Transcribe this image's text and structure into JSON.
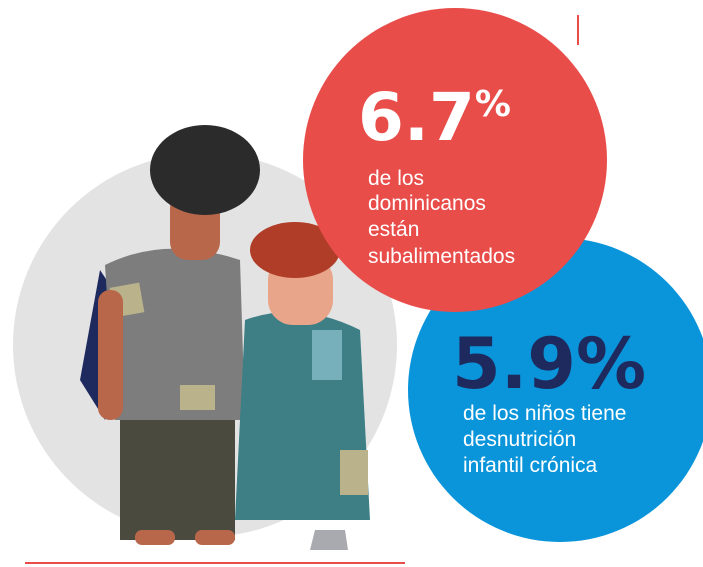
{
  "stats": [
    {
      "value": "6.7",
      "symbol": "%",
      "lines": [
        "de los",
        "dominicanos",
        "están",
        "subalimentados"
      ]
    },
    {
      "value": "5.9",
      "symbol": "%",
      "lines": [
        "de los niños tiene",
        "desnutrición",
        "infantil crónica"
      ]
    }
  ]
}
